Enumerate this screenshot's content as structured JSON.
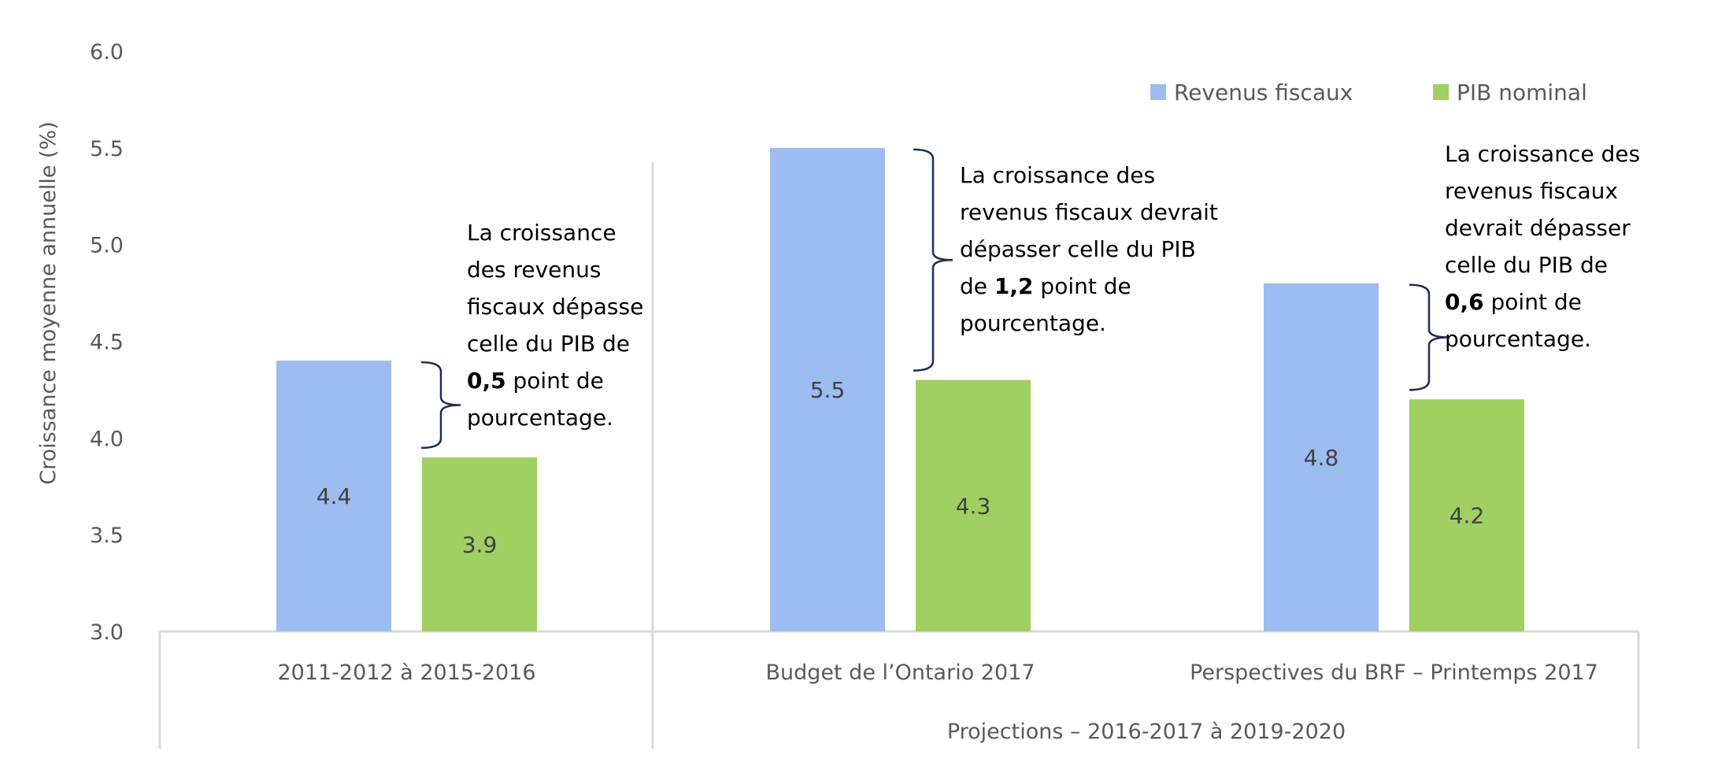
{
  "chart_data": {
    "type": "bar",
    "title": "",
    "xlabel": "",
    "ylabel": "Croissance moyenne annuelle (%)",
    "ylim": [
      3.0,
      6.0
    ],
    "yticks": [
      "3.0",
      "3.5",
      "4.0",
      "4.5",
      "5.0",
      "5.5",
      "6.0"
    ],
    "grid": false,
    "legend_position": "top-right",
    "categories": [
      "2011-2012 à 2015-2016",
      "Budget de l’Ontario 2017",
      "Perspectives du BRF – Printemps 2017"
    ],
    "category_group": {
      "label": "Projections – 2016-2017 à 2019-2020",
      "covers": [
        "Budget de l’Ontario 2017",
        "Perspectives du BRF – Printemps 2017"
      ]
    },
    "series": [
      {
        "name": "Revenus fiscaux",
        "color": "#9dbcf0",
        "values": [
          4.4,
          5.5,
          4.8
        ],
        "labels": [
          "4.4",
          "5.5",
          "4.8"
        ]
      },
      {
        "name": "PIB nominal",
        "color": "#a0cf62",
        "values": [
          3.9,
          4.3,
          4.2
        ],
        "labels": [
          "3.9",
          "4.3",
          "4.2"
        ]
      }
    ],
    "annotations": [
      {
        "category": "2011-2012 à 2015-2016",
        "lines": [
          [
            {
              "t": "La croissance"
            }
          ],
          [
            {
              "t": "des revenus"
            }
          ],
          [
            {
              "t": "fiscaux dépasse"
            }
          ],
          [
            {
              "t": "celle du PIB de"
            }
          ],
          [
            {
              "t": "0,5",
              "bold": true
            },
            {
              "t": " point de"
            }
          ],
          [
            {
              "t": "pourcentage."
            }
          ]
        ]
      },
      {
        "category": "Budget de l’Ontario 2017",
        "lines": [
          [
            {
              "t": "La croissance des"
            }
          ],
          [
            {
              "t": "revenus fiscaux devrait"
            }
          ],
          [
            {
              "t": "dépasser celle du PIB"
            }
          ],
          [
            {
              "t": "de "
            },
            {
              "t": "1,2",
              "bold": true
            },
            {
              "t": " point de"
            }
          ],
          [
            {
              "t": "pourcentage."
            }
          ]
        ]
      },
      {
        "category": "Perspectives du BRF – Printemps 2017",
        "lines": [
          [
            {
              "t": "La croissance des"
            }
          ],
          [
            {
              "t": "revenus fiscaux"
            }
          ],
          [
            {
              "t": "devrait dépasser"
            }
          ],
          [
            {
              "t": "celle du PIB de"
            }
          ],
          [
            {
              "t": "0,6",
              "bold": true
            },
            {
              "t": " point de"
            }
          ],
          [
            {
              "t": "pourcentage."
            }
          ]
        ]
      }
    ]
  },
  "colors": {
    "axis": "#d9d9d9",
    "brace": "#1f2d4d",
    "text_muted": "#595959",
    "text_dark": "#404040"
  }
}
